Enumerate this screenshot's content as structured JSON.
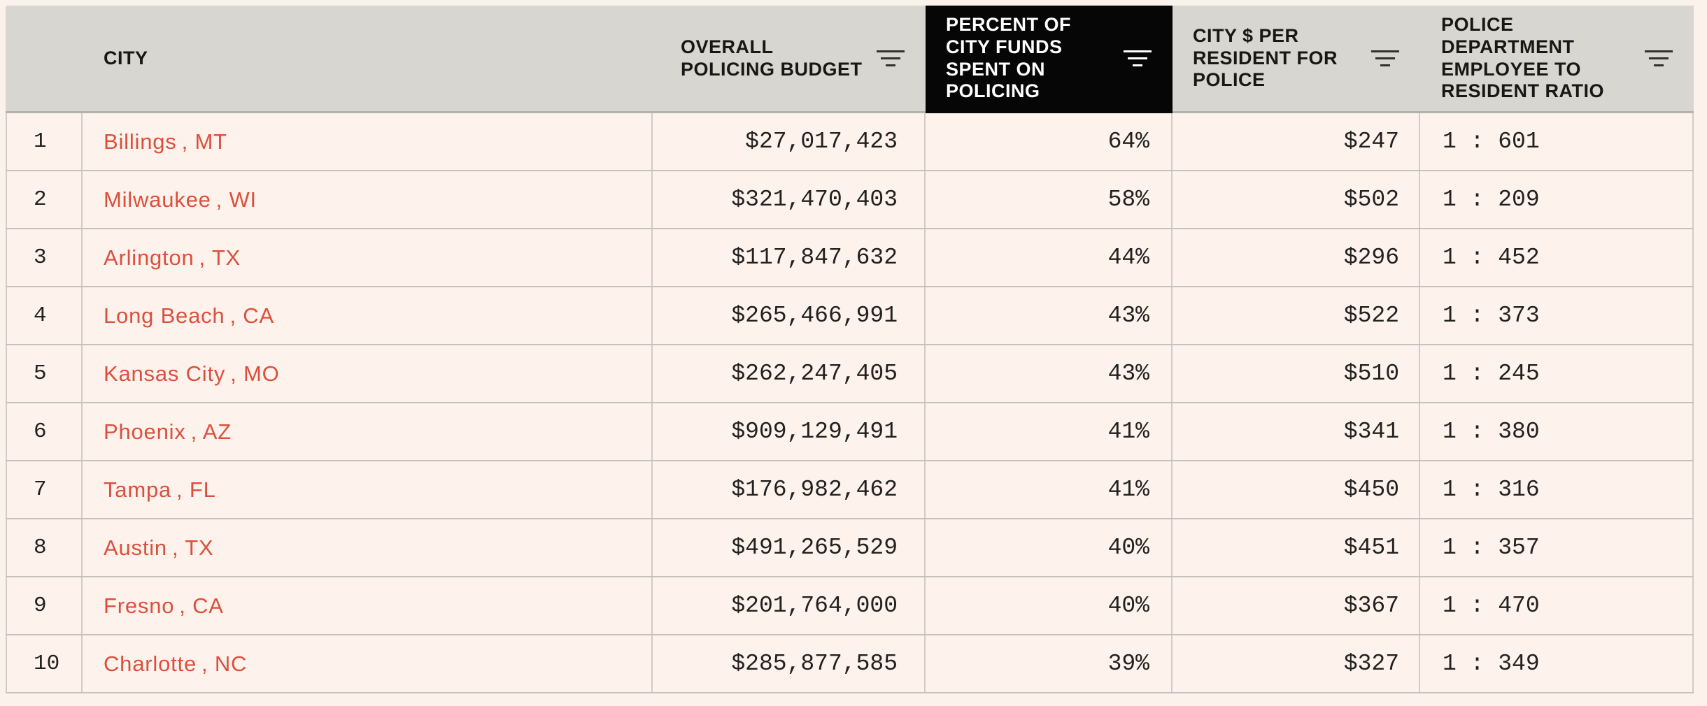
{
  "page": {
    "background": "#fcf2ec"
  },
  "colors": {
    "header_bg": "#d8d6d1",
    "header_text": "#181715",
    "highlight_bg": "#060606",
    "highlight_text": "#ffffff",
    "row_bg": "#fdf3ec",
    "row_border": "#c6c1bc",
    "cell_border": "#d2ccc6",
    "header_bottom_border": "#b5b1ac",
    "accent_red": "#dc4f3d",
    "text_dark": "#22211f"
  },
  "icons": {
    "sort": "sort-filter-lines-icon"
  },
  "table": {
    "columns": [
      {
        "key": "rank",
        "label": "",
        "sortable": false
      },
      {
        "key": "city",
        "label": "CITY",
        "sortable": false
      },
      {
        "key": "budget",
        "label": "OVERALL\nPOLICING BUDGET",
        "sortable": true
      },
      {
        "key": "percent",
        "label": "PERCENT OF\nCITY FUNDS\nSPENT ON\nPOLICING",
        "sortable": true,
        "highlighted": true
      },
      {
        "key": "per_resident",
        "label": "CITY $ PER\nRESIDENT FOR\nPOLICE",
        "sortable": true
      },
      {
        "key": "ratio",
        "label": "POLICE\nDEPARTMENT\nEMPLOYEE TO\nRESIDENT RATIO",
        "sortable": true
      }
    ],
    "rows": [
      {
        "rank": "1",
        "city": "Billings, MT",
        "budget": "$27,017,423",
        "percent": "64%",
        "per_resident": "$247",
        "ratio": "1 : 601"
      },
      {
        "rank": "2",
        "city": "Milwaukee, WI",
        "budget": "$321,470,403",
        "percent": "58%",
        "per_resident": "$502",
        "ratio": "1 : 209"
      },
      {
        "rank": "3",
        "city": "Arlington, TX",
        "budget": "$117,847,632",
        "percent": "44%",
        "per_resident": "$296",
        "ratio": "1 : 452"
      },
      {
        "rank": "4",
        "city": "Long Beach, CA",
        "budget": "$265,466,991",
        "percent": "43%",
        "per_resident": "$522",
        "ratio": "1 : 373"
      },
      {
        "rank": "5",
        "city": "Kansas City, MO",
        "budget": "$262,247,405",
        "percent": "43%",
        "per_resident": "$510",
        "ratio": "1 : 245"
      },
      {
        "rank": "6",
        "city": "Phoenix, AZ",
        "budget": "$909,129,491",
        "percent": "41%",
        "per_resident": "$341",
        "ratio": "1 : 380"
      },
      {
        "rank": "7",
        "city": "Tampa, FL",
        "budget": "$176,982,462",
        "percent": "41%",
        "per_resident": "$450",
        "ratio": "1 : 316"
      },
      {
        "rank": "8",
        "city": "Austin, TX",
        "budget": "$491,265,529",
        "percent": "40%",
        "per_resident": "$451",
        "ratio": "1 : 357"
      },
      {
        "rank": "9",
        "city": "Fresno, CA",
        "budget": "$201,764,000",
        "percent": "40%",
        "per_resident": "$367",
        "ratio": "1 : 470"
      },
      {
        "rank": "10",
        "city": "Charlotte, NC",
        "budget": "$285,877,585",
        "percent": "39%",
        "per_resident": "$327",
        "ratio": "1 : 349"
      }
    ]
  },
  "chart_data": {
    "type": "table",
    "title": "",
    "columns": [
      "CITY",
      "OVERALL POLICING BUDGET",
      "PERCENT OF CITY FUNDS SPENT ON POLICING",
      "CITY $ PER RESIDENT FOR POLICE",
      "POLICE DEPARTMENT EMPLOYEE TO RESIDENT RATIO"
    ],
    "rows": [
      [
        "Billings, MT",
        27017423,
        64,
        247,
        "1:601"
      ],
      [
        "Milwaukee, WI",
        321470403,
        58,
        502,
        "1:209"
      ],
      [
        "Arlington, TX",
        117847632,
        44,
        296,
        "1:452"
      ],
      [
        "Long Beach, CA",
        265466991,
        43,
        522,
        "1:373"
      ],
      [
        "Kansas City, MO",
        262247405,
        43,
        510,
        "1:245"
      ],
      [
        "Phoenix, AZ",
        909129491,
        41,
        341,
        "1:380"
      ],
      [
        "Tampa, FL",
        176982462,
        41,
        450,
        "1:316"
      ],
      [
        "Austin, TX",
        491265529,
        40,
        451,
        "1:357"
      ],
      [
        "Fresno, CA",
        201764000,
        40,
        367,
        "1:470"
      ],
      [
        "Charlotte, NC",
        285877585,
        39,
        327,
        "1:349"
      ]
    ],
    "highlighted_column": "PERCENT OF CITY FUNDS SPENT ON POLICING",
    "sorted_by": "PERCENT OF CITY FUNDS SPENT ON POLICING",
    "sort_order": "descending",
    "units": {
      "OVERALL POLICING BUDGET": "USD",
      "PERCENT OF CITY FUNDS SPENT ON POLICING": "%",
      "CITY $ PER RESIDENT FOR POLICE": "USD"
    }
  }
}
